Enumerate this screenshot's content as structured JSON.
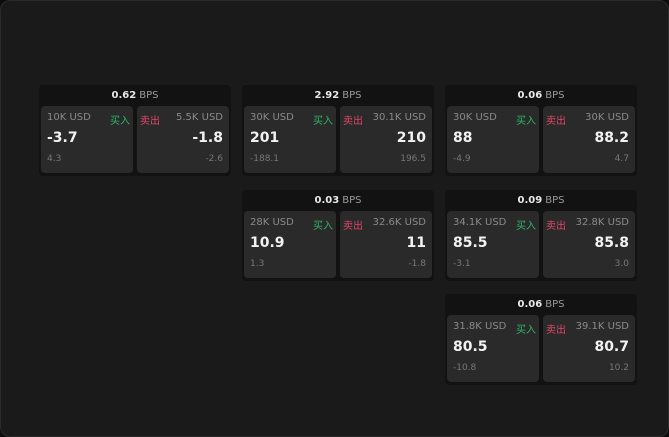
{
  "labels": {
    "buy": "买入",
    "sell": "卖出",
    "unit": "BPS"
  },
  "colors": {
    "buy": "#2fb36a",
    "sell": "#e0466b"
  },
  "cards": [
    {
      "spread": "0.62",
      "bid": {
        "size": "10K USD",
        "price": "-3.7",
        "change": "4.3"
      },
      "ask": {
        "size": "5.5K USD",
        "price": "-1.8",
        "change": "-2.6"
      }
    },
    {
      "spread": "2.92",
      "bid": {
        "size": "30K USD",
        "price": "201",
        "change": "-188.1"
      },
      "ask": {
        "size": "30.1K USD",
        "price": "210",
        "change": "196.5"
      }
    },
    {
      "spread": "0.06",
      "bid": {
        "size": "30K USD",
        "price": "88",
        "change": "-4.9"
      },
      "ask": {
        "size": "30K USD",
        "price": "88.2",
        "change": "4.7"
      }
    },
    {
      "spread": "0.03",
      "bid": {
        "size": "28K USD",
        "price": "10.9",
        "change": "1.3"
      },
      "ask": {
        "size": "32.6K USD",
        "price": "11",
        "change": "-1.8"
      }
    },
    {
      "spread": "0.09",
      "bid": {
        "size": "34.1K USD",
        "price": "85.5",
        "change": "-3.1"
      },
      "ask": {
        "size": "32.8K USD",
        "price": "85.8",
        "change": "3.0"
      }
    },
    {
      "spread": "0.06",
      "bid": {
        "size": "31.8K USD",
        "price": "80.5",
        "change": "-10.8"
      },
      "ask": {
        "size": "39.1K USD",
        "price": "80.7",
        "change": "10.2"
      }
    }
  ]
}
